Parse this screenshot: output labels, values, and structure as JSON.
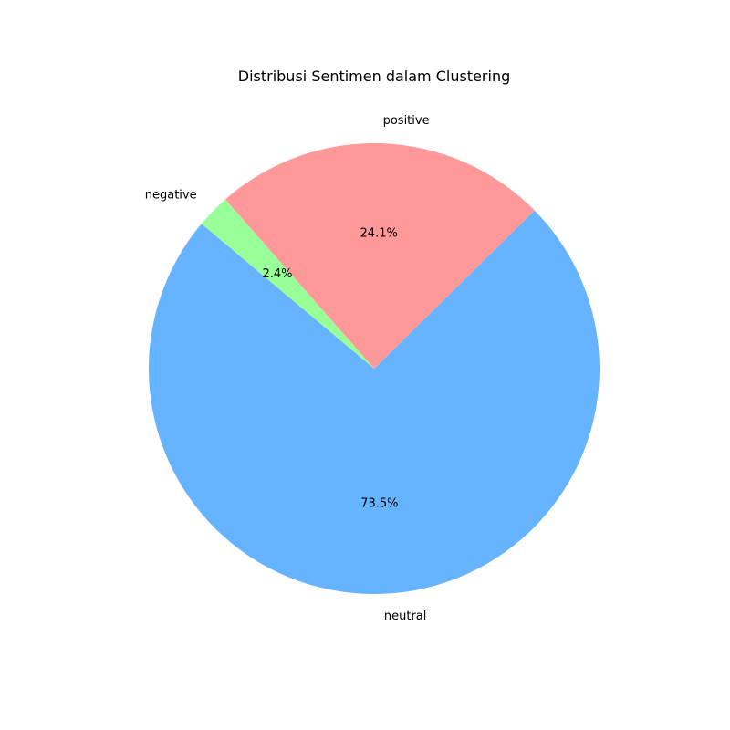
{
  "chart_data": {
    "type": "pie",
    "title": "Distribusi Sentimen dalam Clustering",
    "labels": [
      "neutral",
      "positive",
      "negative"
    ],
    "values": [
      73.5,
      24.1,
      2.4
    ],
    "percent_labels": [
      "73.5%",
      "24.1%",
      "2.4%"
    ],
    "colors": [
      "#66b3ff",
      "#ff9999",
      "#99ff99"
    ],
    "start_angle_deg": 140,
    "direction": "counterclockwise",
    "legend": "none"
  }
}
